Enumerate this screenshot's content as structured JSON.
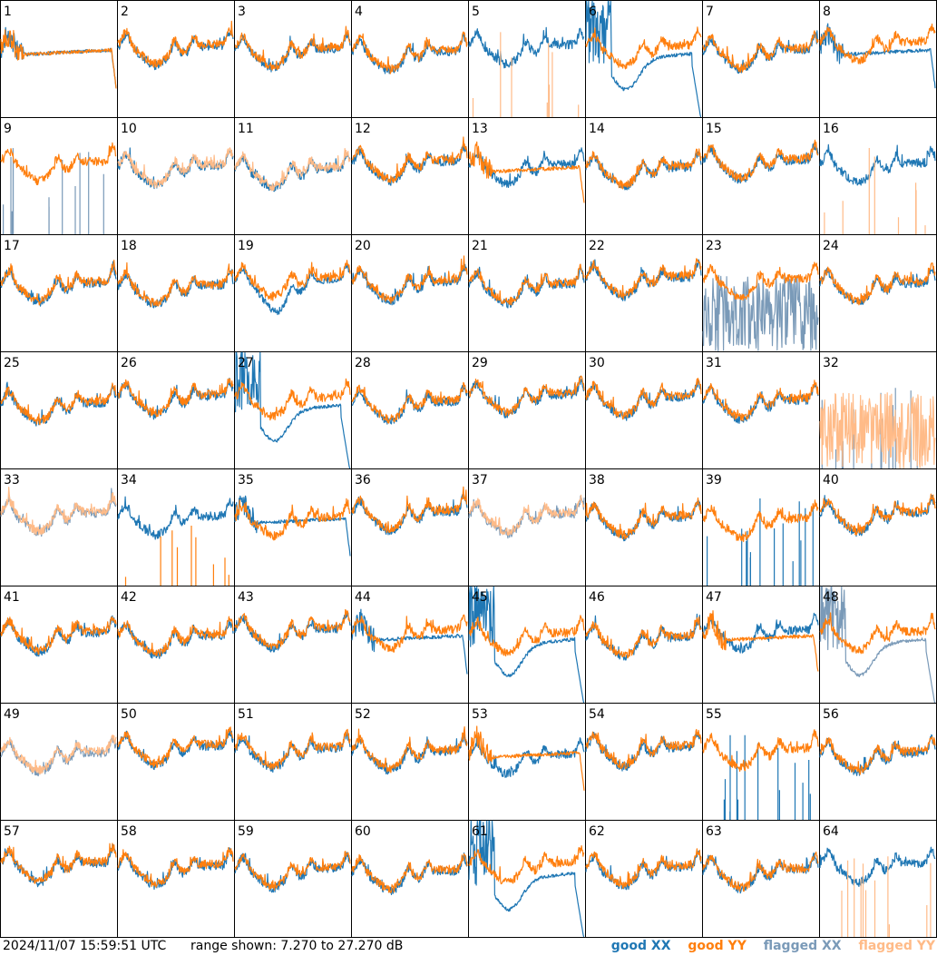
{
  "colors": {
    "good_xx": "#1f77b4",
    "good_yy": "#ff7f0e",
    "flagged_xx": "#7a9ab8",
    "flagged_yy": "#ffbb88"
  },
  "footer": {
    "timestamp": "2024/11/07 15:59:51 UTC",
    "range": "range shown: 7.270 to 27.270 dB"
  },
  "legend": {
    "good_xx": "good XX",
    "good_yy": "good YY",
    "flagged_xx": "flagged XX",
    "flagged_yy": "flagged YY"
  },
  "chart_data": {
    "type": "line",
    "title": "",
    "layout": "8x8 small multiples",
    "ylim": [
      7.27,
      27.27
    ],
    "yunit": "dB",
    "x_axis": "unlabeled",
    "series_names": [
      "good XX",
      "good YY",
      "flagged XX",
      "flagged YY"
    ],
    "panels": [
      {
        "label": "1",
        "xx": "good",
        "yy": "good",
        "xx_mode": "flat",
        "yy_mode": "flat"
      },
      {
        "label": "2",
        "xx": "good",
        "yy": "good"
      },
      {
        "label": "3",
        "xx": "good",
        "yy": "good"
      },
      {
        "label": "4",
        "xx": "good",
        "yy": "good"
      },
      {
        "label": "5",
        "xx": "good",
        "yy": "flagged",
        "yy_mode": "spikes"
      },
      {
        "label": "6",
        "xx": "good",
        "yy": "good",
        "xx_mode": "decay"
      },
      {
        "label": "7",
        "xx": "good",
        "yy": "good"
      },
      {
        "label": "8",
        "xx": "good",
        "yy": "good",
        "xx_mode": "flat"
      },
      {
        "label": "9",
        "xx": "flagged",
        "yy": "good",
        "xx_mode": "spikes"
      },
      {
        "label": "10",
        "xx": "good",
        "yy": "flagged"
      },
      {
        "label": "11",
        "xx": "good",
        "yy": "flagged"
      },
      {
        "label": "12",
        "xx": "good",
        "yy": "good"
      },
      {
        "label": "13",
        "xx": "good",
        "yy": "good",
        "yy_mode": "flat"
      },
      {
        "label": "14",
        "xx": "good",
        "yy": "good"
      },
      {
        "label": "15",
        "xx": "good",
        "yy": "good"
      },
      {
        "label": "16",
        "xx": "good",
        "yy": "flagged",
        "yy_mode": "spikes"
      },
      {
        "label": "17",
        "xx": "good",
        "yy": "good"
      },
      {
        "label": "18",
        "xx": "good",
        "yy": "good"
      },
      {
        "label": "19",
        "xx": "good",
        "yy": "good",
        "xx_mode": "low"
      },
      {
        "label": "20",
        "xx": "good",
        "yy": "good"
      },
      {
        "label": "21",
        "xx": "good",
        "yy": "good"
      },
      {
        "label": "22",
        "xx": "good",
        "yy": "good"
      },
      {
        "label": "23",
        "xx": "flagged",
        "yy": "good",
        "xx_mode": "noise"
      },
      {
        "label": "24",
        "xx": "good",
        "yy": "good"
      },
      {
        "label": "25",
        "xx": "good",
        "yy": "good"
      },
      {
        "label": "26",
        "xx": "good",
        "yy": "good"
      },
      {
        "label": "27",
        "xx": "good",
        "yy": "good",
        "xx_mode": "decay"
      },
      {
        "label": "28",
        "xx": "good",
        "yy": "good"
      },
      {
        "label": "29",
        "xx": "good",
        "yy": "good"
      },
      {
        "label": "30",
        "xx": "good",
        "yy": "good"
      },
      {
        "label": "31",
        "xx": "good",
        "yy": "good"
      },
      {
        "label": "32",
        "xx": "flagged",
        "yy": "flagged",
        "xx_mode": "spikes",
        "yy_mode": "noise"
      },
      {
        "label": "33",
        "xx": "flagged",
        "yy": "flagged"
      },
      {
        "label": "34",
        "xx": "good",
        "yy": "good",
        "yy_mode": "spikes"
      },
      {
        "label": "35",
        "xx": "good",
        "yy": "good",
        "xx_mode": "flat"
      },
      {
        "label": "36",
        "xx": "good",
        "yy": "good"
      },
      {
        "label": "37",
        "xx": "flagged",
        "yy": "flagged"
      },
      {
        "label": "38",
        "xx": "good",
        "yy": "good"
      },
      {
        "label": "39",
        "xx": "good",
        "yy": "good",
        "xx_mode": "spikes"
      },
      {
        "label": "40",
        "xx": "good",
        "yy": "good"
      },
      {
        "label": "41",
        "xx": "good",
        "yy": "good"
      },
      {
        "label": "42",
        "xx": "good",
        "yy": "good"
      },
      {
        "label": "43",
        "xx": "good",
        "yy": "good"
      },
      {
        "label": "44",
        "xx": "good",
        "yy": "good",
        "xx_mode": "flat"
      },
      {
        "label": "45",
        "xx": "good",
        "yy": "good",
        "xx_mode": "decay"
      },
      {
        "label": "46",
        "xx": "good",
        "yy": "good"
      },
      {
        "label": "47",
        "xx": "good",
        "yy": "good",
        "yy_mode": "flat"
      },
      {
        "label": "48",
        "xx": "flagged",
        "yy": "good",
        "xx_mode": "decay"
      },
      {
        "label": "49",
        "xx": "flagged",
        "yy": "flagged"
      },
      {
        "label": "50",
        "xx": "good",
        "yy": "good"
      },
      {
        "label": "51",
        "xx": "good",
        "yy": "good"
      },
      {
        "label": "52",
        "xx": "good",
        "yy": "good"
      },
      {
        "label": "53",
        "xx": "good",
        "yy": "good",
        "yy_mode": "flat"
      },
      {
        "label": "54",
        "xx": "good",
        "yy": "good"
      },
      {
        "label": "55",
        "xx": "good",
        "yy": "good",
        "xx_mode": "spikes"
      },
      {
        "label": "56",
        "xx": "good",
        "yy": "good"
      },
      {
        "label": "57",
        "xx": "good",
        "yy": "good"
      },
      {
        "label": "58",
        "xx": "good",
        "yy": "good"
      },
      {
        "label": "59",
        "xx": "good",
        "yy": "good"
      },
      {
        "label": "60",
        "xx": "good",
        "yy": "good"
      },
      {
        "label": "61",
        "xx": "good",
        "yy": "good",
        "xx_mode": "decay"
      },
      {
        "label": "62",
        "xx": "good",
        "yy": "good"
      },
      {
        "label": "63",
        "xx": "good",
        "yy": "good"
      },
      {
        "label": "64",
        "xx": "good",
        "yy": "flagged",
        "yy_mode": "spikes"
      }
    ]
  }
}
